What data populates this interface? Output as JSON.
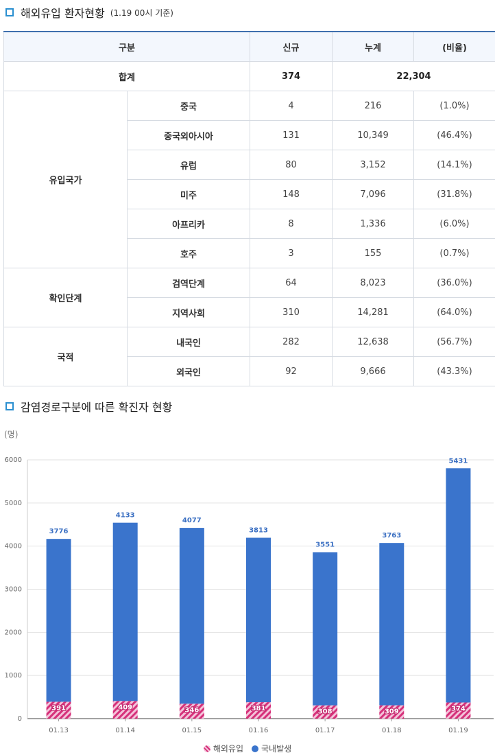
{
  "section1": {
    "title": "해외유입 환자현황",
    "subtitle": "(1.19 00시 기준)"
  },
  "table": {
    "headers": [
      "구분",
      "신규",
      "누계",
      "(비율)"
    ],
    "total": {
      "label": "합계",
      "new": "374",
      "cum": "22,304"
    },
    "groups": [
      {
        "name": "유입국가",
        "rows": [
          {
            "label": "중국",
            "new": "4",
            "cum": "216",
            "ratio": "(1.0%)"
          },
          {
            "label": "중국외아시아",
            "new": "131",
            "cum": "10,349",
            "ratio": "(46.4%)"
          },
          {
            "label": "유럽",
            "new": "80",
            "cum": "3,152",
            "ratio": "(14.1%)"
          },
          {
            "label": "미주",
            "new": "148",
            "cum": "7,096",
            "ratio": "(31.8%)"
          },
          {
            "label": "아프리카",
            "new": "8",
            "cum": "1,336",
            "ratio": "(6.0%)"
          },
          {
            "label": "호주",
            "new": "3",
            "cum": "155",
            "ratio": "(0.7%)"
          }
        ]
      },
      {
        "name": "확인단계",
        "rows": [
          {
            "label": "검역단계",
            "new": "64",
            "cum": "8,023",
            "ratio": "(36.0%)"
          },
          {
            "label": "지역사회",
            "new": "310",
            "cum": "14,281",
            "ratio": "(64.0%)"
          }
        ]
      },
      {
        "name": "국적",
        "rows": [
          {
            "label": "내국인",
            "new": "282",
            "cum": "12,638",
            "ratio": "(56.7%)"
          },
          {
            "label": "외국인",
            "new": "92",
            "cum": "9,666",
            "ratio": "(43.3%)"
          }
        ]
      }
    ]
  },
  "section2": {
    "title": "감염경로구분에 따른 확진자 현황"
  },
  "chart_data": {
    "type": "bar",
    "stacked": true,
    "title": "",
    "xlabel": "",
    "ylabel": "(명)",
    "ylim": [
      0,
      6000
    ],
    "yticks": [
      0,
      1000,
      2000,
      3000,
      4000,
      5000,
      6000
    ],
    "categories": [
      "01.13",
      "01.14",
      "01.15",
      "01.16",
      "01.17",
      "01.18",
      "01.19"
    ],
    "series": [
      {
        "name": "해외유입",
        "color": "#d6317a",
        "pattern": "hatch",
        "values": [
          391,
          409,
          346,
          381,
          308,
          309,
          374
        ]
      },
      {
        "name": "국내발생",
        "color": "#3a74cc",
        "values": [
          3776,
          4133,
          4077,
          3813,
          3551,
          3763,
          5431
        ]
      }
    ],
    "grid": true,
    "legend": "bottom-center"
  }
}
